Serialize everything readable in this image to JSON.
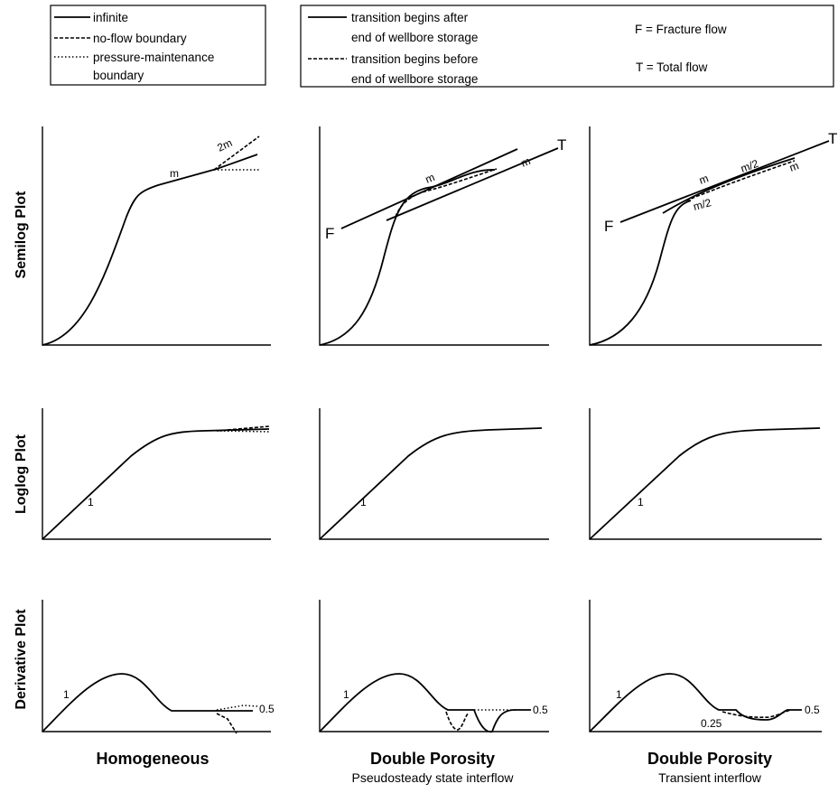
{
  "legend_left": {
    "items": [
      {
        "label": "infinite",
        "style": "solid"
      },
      {
        "label": "no-flow boundary",
        "style": "dashed"
      },
      {
        "label": "pressure-maintenance",
        "style": "dotted"
      },
      {
        "label": "boundary",
        "style": "none"
      }
    ]
  },
  "legend_mid": {
    "items": [
      {
        "label": "transition begins after",
        "style": "solid"
      },
      {
        "label": "end of wellbore storage",
        "style": "none"
      },
      {
        "label": "transition begins before",
        "style": "dashed"
      },
      {
        "label": "end of wellbore storage",
        "style": "none"
      }
    ]
  },
  "legend_right": {
    "fracture": "F = Fracture flow",
    "total": "T = Total flow"
  },
  "rows": {
    "semilog": "Semilog Plot",
    "loglog": "Loglog Plot",
    "derivative": "Derivative Plot"
  },
  "columns": {
    "homogeneous": {
      "title": "Homogeneous",
      "subtitle": ""
    },
    "pss": {
      "title": "Double Porosity",
      "subtitle": "Pseudosteady state interflow"
    },
    "transient": {
      "title": "Double Porosity",
      "subtitle": "Transient interflow"
    }
  },
  "annotations": {
    "m": "m",
    "two_m": "2m",
    "m_half": "m/2",
    "one": "1",
    "half": "0.5",
    "quarter": "0.25",
    "F": "F",
    "T": "T"
  }
}
